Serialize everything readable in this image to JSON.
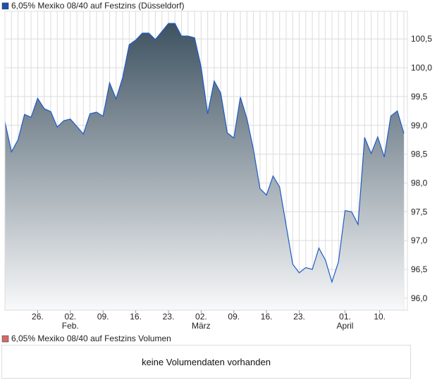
{
  "chart_data": {
    "type": "area",
    "title": "6,05% Mexiko 08/40 auf Festzins (Düsseldorf)",
    "legend": "top-left",
    "colors": {
      "line": "#1f5bc6",
      "fill_top": "#3e5261",
      "fill_bottom": "#f8f9fa",
      "legend_main": "#1f4fae",
      "legend_volume": "#d46a6a",
      "grid": "#dcdcdc"
    },
    "values": [
      99.06,
      98.54,
      98.75,
      99.19,
      99.14,
      99.47,
      99.29,
      99.24,
      98.97,
      99.08,
      99.11,
      98.98,
      98.85,
      99.2,
      99.23,
      99.16,
      99.74,
      99.46,
      99.83,
      100.4,
      100.48,
      100.6,
      100.6,
      100.49,
      100.63,
      100.77,
      100.77,
      100.55,
      100.55,
      100.52,
      100.01,
      99.2,
      99.77,
      99.56,
      98.87,
      98.78,
      99.49,
      99.12,
      98.58,
      97.9,
      97.79,
      98.12,
      97.93,
      97.26,
      96.59,
      96.44,
      96.53,
      96.5,
      96.87,
      96.66,
      96.28,
      96.63,
      97.52,
      97.5,
      97.28,
      98.79,
      98.51,
      98.8,
      98.45,
      99.16,
      99.25,
      98.86
    ],
    "ylim": [
      95.79,
      100.98
    ],
    "yticks": [
      {
        "value": 96.0,
        "label": "96,0"
      },
      {
        "value": 96.5,
        "label": "96,5"
      },
      {
        "value": 97.0,
        "label": "97,0"
      },
      {
        "value": 97.5,
        "label": "97,5"
      },
      {
        "value": 98.0,
        "label": "98,0"
      },
      {
        "value": 98.5,
        "label": "98,5"
      },
      {
        "value": 99.0,
        "label": "99,0"
      },
      {
        "value": 99.5,
        "label": "99,5"
      },
      {
        "value": 100.0,
        "label": "100,0"
      },
      {
        "value": 100.5,
        "label": "100,5"
      }
    ],
    "xticks": [
      {
        "index": 5,
        "label": "26.",
        "month": ""
      },
      {
        "index": 10,
        "label": "02.",
        "month": "Feb."
      },
      {
        "index": 15,
        "label": "09.",
        "month": ""
      },
      {
        "index": 20,
        "label": "16.",
        "month": ""
      },
      {
        "index": 25,
        "label": "23.",
        "month": ""
      },
      {
        "index": 30,
        "label": "02.",
        "month": "März"
      },
      {
        "index": 35,
        "label": "09.",
        "month": ""
      },
      {
        "index": 40,
        "label": "16.",
        "month": ""
      },
      {
        "index": 45,
        "label": "23.",
        "month": ""
      },
      {
        "index": 52,
        "label": "01.",
        "month": "April"
      },
      {
        "index": 57.3,
        "label": "10.",
        "month": ""
      }
    ]
  },
  "volume": {
    "legend": "6,05% Mexiko 08/40 auf Festzins Volumen",
    "empty_message": "keine Volumendaten vorhanden"
  }
}
